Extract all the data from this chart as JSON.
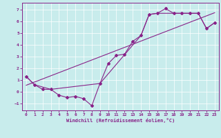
{
  "xlabel": "Windchill (Refroidissement éolien,°C)",
  "bg_color": "#c8ecec",
  "line_color": "#882288",
  "xlim": [
    -0.5,
    23.5
  ],
  "ylim": [
    -1.6,
    7.6
  ],
  "xticks": [
    0,
    1,
    2,
    3,
    4,
    5,
    6,
    7,
    8,
    9,
    10,
    11,
    12,
    13,
    14,
    15,
    16,
    17,
    18,
    19,
    20,
    21,
    22,
    23
  ],
  "yticks": [
    -1,
    0,
    1,
    2,
    3,
    4,
    5,
    6,
    7
  ],
  "series1_x": [
    0,
    1,
    2,
    3,
    4,
    5,
    6,
    7,
    8,
    9,
    10,
    11,
    12,
    13,
    14,
    15,
    16,
    17,
    18,
    19,
    20,
    21,
    22,
    23
  ],
  "series1_y": [
    1.3,
    0.6,
    0.2,
    0.2,
    -0.3,
    -0.5,
    -0.4,
    -0.6,
    -1.2,
    0.7,
    2.4,
    3.1,
    3.2,
    4.3,
    4.8,
    6.6,
    6.7,
    7.1,
    6.7,
    6.7,
    6.7,
    6.7,
    5.4,
    5.9
  ],
  "trend_x": [
    0,
    23
  ],
  "trend_y": [
    0.55,
    6.75
  ],
  "env_x": [
    0,
    1,
    3,
    9,
    14,
    15,
    16,
    17,
    18,
    19,
    20,
    21,
    22,
    23
  ],
  "env_y": [
    1.3,
    0.6,
    0.2,
    0.7,
    4.8,
    6.6,
    6.7,
    6.7,
    6.7,
    6.7,
    6.7,
    6.7,
    5.4,
    5.9
  ]
}
